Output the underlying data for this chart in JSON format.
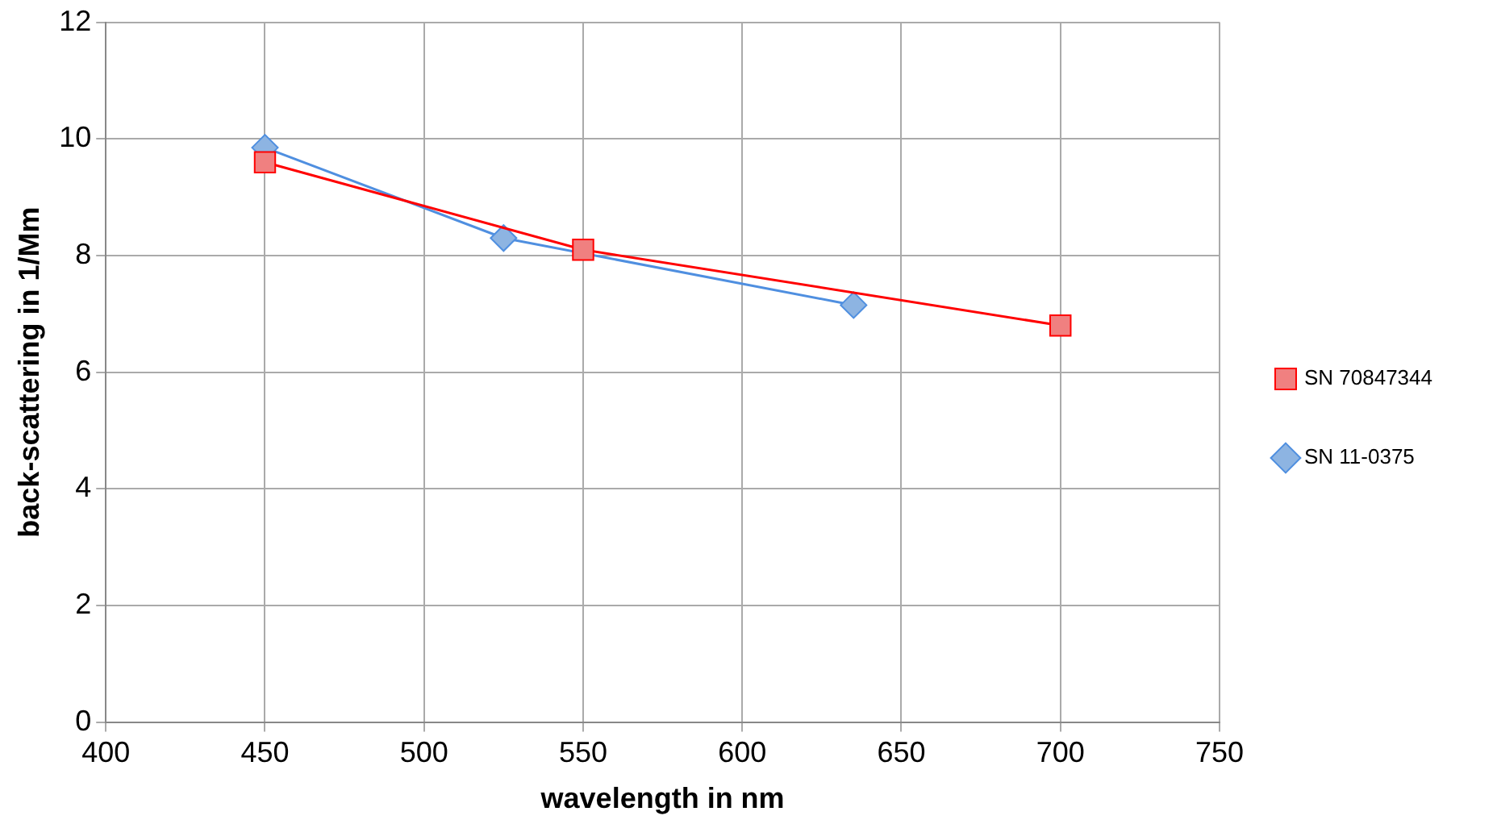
{
  "chart_data": {
    "type": "line",
    "xlabel": "wavelength in nm",
    "ylabel": "back-scattering in 1/Mm",
    "xlim": [
      400,
      750
    ],
    "xticks": [
      400,
      450,
      500,
      550,
      600,
      650,
      700,
      750
    ],
    "ylim": [
      0,
      12
    ],
    "yticks": [
      0,
      2,
      4,
      6,
      8,
      10,
      12
    ],
    "grid": true,
    "legend": "right",
    "series": [
      {
        "name": "SN 70847344",
        "color": "#ff0000",
        "marker": "square",
        "x": [
          450,
          550,
          700
        ],
        "values": [
          9.6,
          8.1,
          6.8
        ]
      },
      {
        "name": "SN 11-0375",
        "color": "#4f8fe0",
        "marker": "diamond",
        "x": [
          450,
          525,
          635
        ],
        "values": [
          9.85,
          8.3,
          7.15
        ]
      }
    ]
  }
}
